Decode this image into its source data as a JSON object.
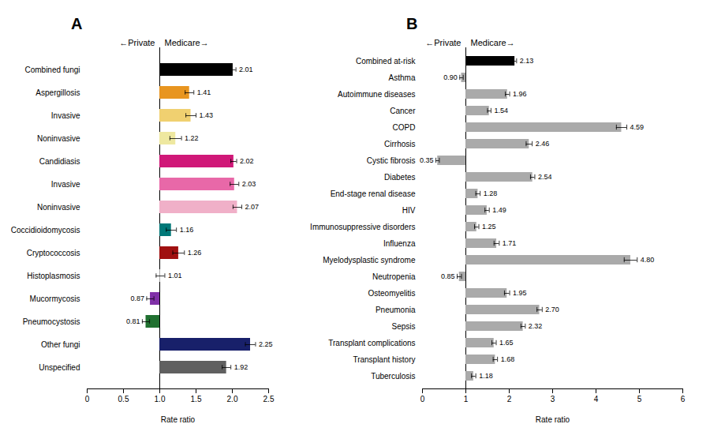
{
  "chart_data": [
    {
      "type": "bar",
      "orientation": "horizontal",
      "title": "A",
      "annotation_left": "←Private",
      "annotation_right": "Medicare→",
      "xlabel": "Rate ratio",
      "baseline": 1.0,
      "categories": [
        "Combined fungi",
        "Aspergillosis",
        "  Invasive",
        "  Noninvasive",
        "Candidiasis",
        "  Invasive",
        "  Noninvasive",
        "Coccidioidomycosis",
        "Cryptococcosis",
        "Histoplasmosis",
        "Mucormycosis",
        "Pneumocystosis",
        "Other fungi",
        "Unspecified"
      ],
      "values": [
        2.01,
        1.41,
        1.43,
        1.22,
        2.02,
        2.03,
        2.07,
        1.16,
        1.26,
        1.01,
        0.87,
        0.81,
        2.25,
        1.92
      ],
      "value_labels": [
        "2.01",
        "1.41",
        "1.43",
        "1.22",
        "2.02",
        "2.03",
        "2.07",
        "1.16",
        "1.26",
        "1.01",
        "0.87",
        "0.81",
        "2.25",
        "1.92"
      ],
      "error_low": [
        0.04,
        0.06,
        0.07,
        0.08,
        0.04,
        0.06,
        0.06,
        0.07,
        0.08,
        0.06,
        0.05,
        0.05,
        0.07,
        0.06
      ],
      "error_high": [
        0.04,
        0.06,
        0.07,
        0.08,
        0.04,
        0.06,
        0.06,
        0.07,
        0.08,
        0.06,
        0.05,
        0.05,
        0.07,
        0.06
      ],
      "colors": [
        "#000000",
        "#E89520",
        "#F0D070",
        "#EEE8A0",
        "#D01878",
        "#E868A8",
        "#F0B0C8",
        "#007878",
        "#A01010",
        "#B8B8B8",
        "#8030A8",
        "#207030",
        "#18206A",
        "#606060"
      ],
      "xlim": [
        0,
        2.5
      ],
      "xticks": [
        0,
        0.5,
        {
          "value": 1,
          "label": "1.0"
        },
        1.5,
        {
          "value": 2,
          "label": "2.0"
        },
        2.5
      ],
      "data_labels": true
    },
    {
      "type": "bar",
      "orientation": "horizontal",
      "title": "B",
      "annotation_left": "←Private",
      "annotation_right": "Medicare→",
      "xlabel": "Rate ratio",
      "baseline": 1.0,
      "categories": [
        "Combined at-risk",
        "Asthma",
        "Autoimmune diseases",
        "Cancer",
        "COPD",
        "Cirrhosis",
        "Cystic fibrosis",
        "Diabetes",
        "End-stage renal disease",
        "HIV",
        "Immunosuppressive disorders",
        "Influenza",
        "Myelodysplastic syndrome",
        "Neutropenia",
        "Osteomyelitis",
        "Pneumonia",
        "Sepsis",
        "Transplant complications",
        "Transplant history",
        "Tuberculosis"
      ],
      "values": [
        2.13,
        0.9,
        1.96,
        1.54,
        4.59,
        2.46,
        0.35,
        2.54,
        1.28,
        1.49,
        1.25,
        1.71,
        4.8,
        0.85,
        1.95,
        2.7,
        2.32,
        1.65,
        1.68,
        1.18
      ],
      "value_labels": [
        "2.13",
        "0.90",
        "1.96",
        "1.54",
        "4.59",
        "2.46",
        "0.35",
        "2.54",
        "1.28",
        "1.49",
        "1.25",
        "1.71",
        "4.80",
        "0.85",
        "1.95",
        "2.70",
        "2.32",
        "1.65",
        "1.68",
        "1.18"
      ],
      "error_low": [
        0.04,
        0.04,
        0.05,
        0.04,
        0.12,
        0.07,
        0.04,
        0.05,
        0.05,
        0.05,
        0.05,
        0.06,
        0.15,
        0.05,
        0.06,
        0.06,
        0.05,
        0.05,
        0.05,
        0.05
      ],
      "error_high": [
        0.04,
        0.04,
        0.05,
        0.04,
        0.12,
        0.07,
        0.04,
        0.05,
        0.05,
        0.05,
        0.05,
        0.06,
        0.15,
        0.05,
        0.06,
        0.06,
        0.05,
        0.05,
        0.05,
        0.05
      ],
      "colors": [
        "#000000",
        "#AAAAAA",
        "#AAAAAA",
        "#AAAAAA",
        "#AAAAAA",
        "#AAAAAA",
        "#AAAAAA",
        "#AAAAAA",
        "#AAAAAA",
        "#AAAAAA",
        "#AAAAAA",
        "#AAAAAA",
        "#AAAAAA",
        "#AAAAAA",
        "#AAAAAA",
        "#AAAAAA",
        "#AAAAAA",
        "#AAAAAA",
        "#AAAAAA",
        "#AAAAAA"
      ],
      "xlim": [
        0,
        6
      ],
      "xticks": [
        0,
        1,
        2,
        3,
        4,
        5,
        6
      ],
      "data_labels": true
    }
  ]
}
